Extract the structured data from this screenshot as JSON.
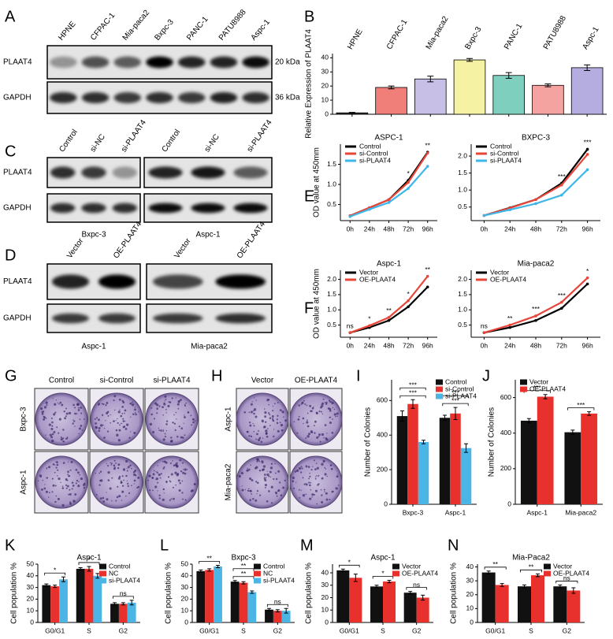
{
  "panel_labels": [
    "A",
    "B",
    "C",
    "D",
    "E",
    "F",
    "G",
    "H",
    "I",
    "J",
    "K",
    "L",
    "M",
    "N"
  ],
  "blot_a": {
    "lanes": [
      "HPNE",
      "CFPAC-1",
      "Mia-paca2",
      "Bxpc-3",
      "PANC-1",
      "PATU8988",
      "Aspc-1"
    ],
    "rows": [
      "PLAAT4",
      "GAPDH"
    ],
    "sizes": [
      "20 kDa",
      "36 kDa"
    ]
  },
  "blot_c": {
    "lanes": [
      "Control",
      "si-NC",
      "si-PLAAT4"
    ],
    "groups": [
      "Bxpc-3",
      "Aspc-1"
    ],
    "rows": [
      "PLAAT4",
      "GAPDH"
    ]
  },
  "blot_d": {
    "lanes": [
      "Vector",
      "OE-PLAAT4"
    ],
    "groups": [
      "Aspc-1",
      "Mia-paca2"
    ],
    "rows": [
      "PLAAT4",
      "GAPDH"
    ]
  },
  "colony_g": {
    "columns": [
      "Control",
      "si-Control",
      "si-PLAAT4"
    ],
    "rows": [
      "Bxpc-3",
      "Aspc-1"
    ]
  },
  "colony_h": {
    "columns": [
      "Vector",
      "OE-PLAAT4"
    ],
    "rows": [
      "Aspc-1",
      "Mia-paca2"
    ]
  },
  "chart_data": [
    {
      "type": "bar",
      "ylabel": "Relative Expression of PLAAT4",
      "categories": [
        "HPNE",
        "CFPAC-1",
        "Mia-paca2",
        "Bxpc-3",
        "PANC-1",
        "PATU8988",
        "Aspc-1"
      ],
      "values": [
        1,
        19,
        25,
        38.5,
        27.5,
        20.5,
        33
      ],
      "errors": [
        0.3,
        1,
        2,
        1,
        2,
        1,
        2
      ],
      "colors": [
        "#333333",
        "#f07f7a",
        "#c8bfe7",
        "#f5f3a3",
        "#7fcfbf",
        "#f4a3a0",
        "#b5ace0"
      ],
      "ylim": [
        0,
        43
      ],
      "yticks": [
        0,
        10,
        20,
        30,
        40
      ]
    },
    {
      "type": "line",
      "title": "ASPC-1",
      "ylabel": "OD value at 450mm",
      "categories": [
        "0h",
        "24h",
        "48h",
        "72h",
        "96h"
      ],
      "series": [
        {
          "name": "Control",
          "color": "#000000",
          "values": [
            0.22,
            0.42,
            0.62,
            1.1,
            1.8
          ]
        },
        {
          "name": "si-Control",
          "color": "#e8463a",
          "values": [
            0.22,
            0.42,
            0.62,
            1.05,
            1.78
          ]
        },
        {
          "name": "si-PLAAT4",
          "color": "#3fb6e8",
          "values": [
            0.2,
            0.38,
            0.55,
            0.9,
            1.45
          ]
        }
      ],
      "ylim": [
        0.1,
        2
      ],
      "yticks": [
        0.5,
        {
          "value": 1,
          "label": "1.0"
        },
        1.5
      ],
      "legend": "upper left",
      "annotations": [
        {
          "text": "*",
          "x": "72h"
        },
        {
          "text": "**",
          "x": "96h"
        }
      ]
    },
    {
      "type": "line",
      "title": "BXPC-3",
      "categories": [
        "0h",
        "24h",
        "48h",
        "72h",
        "96h"
      ],
      "series": [
        {
          "name": "Control",
          "color": "#000000",
          "values": [
            0.25,
            0.48,
            0.72,
            1.2,
            2.2
          ]
        },
        {
          "name": "si-Control",
          "color": "#e8463a",
          "values": [
            0.25,
            0.47,
            0.72,
            1.15,
            2.05
          ]
        },
        {
          "name": "si-PLAAT4",
          "color": "#3fb6e8",
          "values": [
            0.25,
            0.42,
            0.6,
            0.85,
            1.6
          ]
        }
      ],
      "ylim": [
        0.1,
        2.35
      ],
      "yticks": [
        0.5,
        {
          "value": 1,
          "label": "1.0"
        },
        1.5,
        {
          "value": 2,
          "label": "2.0"
        }
      ],
      "legend": "upper left",
      "annotations": [
        {
          "text": "***",
          "x": "72h"
        },
        {
          "text": "***",
          "x": "96h"
        }
      ]
    },
    {
      "type": "line",
      "title": "Aspc-1",
      "ylabel": "OD value at 450mm",
      "categories": [
        "0h",
        "24h",
        "48h",
        "72h",
        "96h"
      ],
      "series": [
        {
          "name": "Vector",
          "color": "#000000",
          "values": [
            0.25,
            0.42,
            0.65,
            1.1,
            1.75
          ]
        },
        {
          "name": "OE-PLAAT4",
          "color": "#e8463a",
          "values": [
            0.25,
            0.48,
            0.75,
            1.3,
            2.1
          ]
        }
      ],
      "ylim": [
        0.1,
        2.3
      ],
      "yticks": [
        0.5,
        {
          "value": 1,
          "label": "1.0"
        },
        1.5,
        {
          "value": 2,
          "label": "2.0"
        }
      ],
      "legend": "upper left",
      "annotations": [
        {
          "text": "ns",
          "x": "0h"
        },
        {
          "text": "*",
          "x": "24h"
        },
        {
          "text": "**",
          "x": "48h"
        },
        {
          "text": "*",
          "x": "72h"
        },
        {
          "text": "**",
          "x": "96h"
        }
      ]
    },
    {
      "type": "line",
      "title": "Mia-paca2",
      "categories": [
        "0h",
        "24h",
        "48h",
        "72h",
        "96h"
      ],
      "series": [
        {
          "name": "Vector",
          "color": "#000000",
          "values": [
            0.25,
            0.42,
            0.65,
            1.05,
            1.85
          ]
        },
        {
          "name": "OE-PLAAT4",
          "color": "#e8463a",
          "values": [
            0.25,
            0.5,
            0.8,
            1.25,
            2.05
          ]
        }
      ],
      "ylim": [
        0.1,
        2.3
      ],
      "yticks": [
        0.5,
        {
          "value": 1,
          "label": "1.0"
        },
        1.5,
        {
          "value": 2,
          "label": "2.0"
        }
      ],
      "legend": "upper left",
      "annotations": [
        {
          "text": "ns",
          "x": "0h"
        },
        {
          "text": "**",
          "x": "24h"
        },
        {
          "text": "***",
          "x": "48h"
        },
        {
          "text": "***",
          "x": "72h"
        },
        {
          "text": "*",
          "x": "96h"
        }
      ]
    },
    {
      "type": "bar",
      "ylabel": "Number of Colonies",
      "categories": [
        "Bxpc-3",
        "Aspc-1"
      ],
      "series": [
        {
          "name": "Control",
          "color": "#111111",
          "values": [
            510,
            500
          ],
          "errors": [
            30,
            15
          ]
        },
        {
          "name": "si-Control",
          "color": "#e8312c",
          "values": [
            580,
            525
          ],
          "errors": [
            25,
            35
          ]
        },
        {
          "name": "si-PLAAT4",
          "color": "#4bb5e6",
          "values": [
            360,
            325
          ],
          "errors": [
            10,
            25
          ]
        }
      ],
      "ylim": [
        0,
        720
      ],
      "yticks": [
        0,
        200,
        400,
        600
      ],
      "legend": "upper right",
      "annotations": [
        {
          "text": "***",
          "category": "Bxpc-3"
        },
        {
          "text": "***",
          "category": "Bxpc-3"
        },
        {
          "text": "***",
          "category": "Aspc-1"
        },
        {
          "text": "***",
          "category": "Aspc-1"
        }
      ]
    },
    {
      "type": "bar",
      "ylabel": "Number of Colonies",
      "categories": [
        "Aspc-1",
        "Mia-paca2"
      ],
      "series": [
        {
          "name": "Vector",
          "color": "#111111",
          "values": [
            470,
            405
          ],
          "errors": [
            12,
            12
          ]
        },
        {
          "name": "OE-PLAAT4",
          "color": "#e8312c",
          "values": [
            605,
            510
          ],
          "errors": [
            12,
            10
          ]
        }
      ],
      "ylim": [
        0,
        700
      ],
      "yticks": [
        0,
        200,
        400,
        600
      ],
      "legend": "upper left",
      "annotations": [
        {
          "text": "***",
          "category": "Aspc-1"
        },
        {
          "text": "***",
          "category": "Mia-paca2"
        }
      ]
    },
    {
      "type": "bar",
      "title": "Aspc-1",
      "ylabel": "Cell population %",
      "categories": [
        "G0/G1",
        "S",
        "G2"
      ],
      "series": [
        {
          "name": "Control",
          "color": "#111111",
          "values": [
            32,
            46,
            16
          ],
          "errors": [
            1,
            1,
            1
          ]
        },
        {
          "name": "NC",
          "color": "#e8312c",
          "values": [
            31,
            46,
            16
          ],
          "errors": [
            1,
            2,
            1
          ]
        },
        {
          "name": "si-PLAAT4",
          "color": "#4bb5e6",
          "values": [
            37,
            40,
            17
          ],
          "errors": [
            2,
            2,
            2
          ]
        }
      ],
      "ylim": [
        0,
        50
      ],
      "yticks": [
        0,
        10,
        20,
        30,
        40,
        50
      ],
      "legend": "upper right",
      "annotations": [
        {
          "text": "*",
          "category": "G0/G1"
        },
        {
          "text": "*",
          "category": "S"
        },
        {
          "text": "ns",
          "category": "G2"
        }
      ]
    },
    {
      "type": "bar",
      "title": "Bxpc-3",
      "ylabel": "Cell population %",
      "categories": [
        "G0/G1",
        "S",
        "G2"
      ],
      "series": [
        {
          "name": "Control",
          "color": "#111111",
          "values": [
            44,
            35,
            11
          ],
          "errors": [
            1,
            1,
            1
          ]
        },
        {
          "name": "NC",
          "color": "#e8312c",
          "values": [
            45,
            34,
            10
          ],
          "errors": [
            1,
            1,
            1
          ]
        },
        {
          "name": "si-PLAAT4",
          "color": "#4bb5e6",
          "values": [
            48,
            26,
            10
          ],
          "errors": [
            1,
            1,
            2
          ]
        }
      ],
      "ylim": [
        0,
        50
      ],
      "yticks": [
        0,
        10,
        20,
        30,
        40,
        50
      ],
      "legend": "upper right",
      "annotations": [
        {
          "text": "**",
          "category": "G0/G1"
        },
        {
          "text": "**",
          "category": "S"
        },
        {
          "text": "**",
          "category": "S"
        },
        {
          "text": "ns",
          "category": "G2"
        }
      ]
    },
    {
      "type": "bar",
      "title": "Aspc-1",
      "ylabel": "Cell population %",
      "categories": [
        "G0/G1",
        "S",
        "G2"
      ],
      "series": [
        {
          "name": "Vector",
          "color": "#111111",
          "values": [
            42,
            29,
            24
          ],
          "errors": [
            1,
            1,
            1
          ]
        },
        {
          "name": "OE-PLAAT4",
          "color": "#e8312c",
          "values": [
            36,
            33,
            20
          ],
          "errors": [
            3,
            1,
            2
          ]
        }
      ],
      "ylim": [
        0,
        47
      ],
      "yticks": [
        0,
        10,
        20,
        30,
        40
      ],
      "legend": "upper right",
      "annotations": [
        {
          "text": "*",
          "category": "G0/G1"
        },
        {
          "text": "*",
          "category": "S"
        },
        {
          "text": "ns",
          "category": "G2"
        }
      ]
    },
    {
      "type": "bar",
      "title": "Mia-Paca2",
      "ylabel": "Cell population %",
      "categories": [
        "G0/G1",
        "S",
        "G2"
      ],
      "series": [
        {
          "name": "Vector",
          "color": "#111111",
          "values": [
            36,
            26,
            26
          ],
          "errors": [
            1,
            1,
            1
          ]
        },
        {
          "name": "OE-PLAAT4",
          "color": "#e8312c",
          "values": [
            27,
            34,
            23
          ],
          "errors": [
            1,
            1,
            2
          ]
        }
      ],
      "ylim": [
        0,
        42
      ],
      "yticks": [
        0,
        10,
        20,
        30,
        40
      ],
      "legend": "upper right",
      "annotations": [
        {
          "text": "**",
          "category": "G0/G1"
        },
        {
          "text": "**",
          "category": "S"
        },
        {
          "text": "ns",
          "category": "G2"
        }
      ]
    }
  ]
}
